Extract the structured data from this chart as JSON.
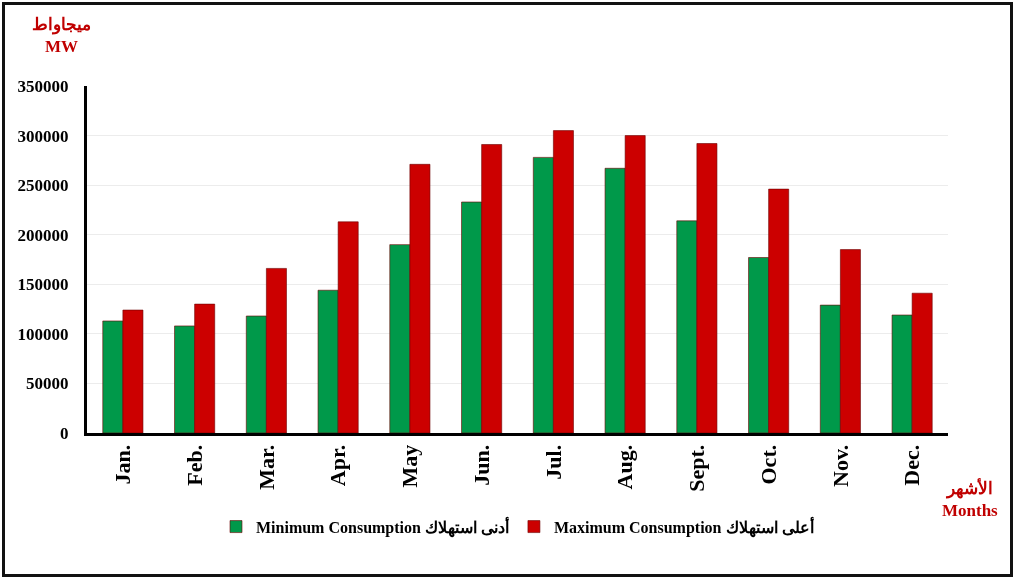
{
  "chart_data": {
    "type": "bar",
    "ylabel": "ميجاواط\nMW",
    "xlabel": "الأشهر\nMonths",
    "categories": [
      "Jan.",
      "Feb.",
      "Mar.",
      "Apr.",
      "May",
      "Jun.",
      "Jul.",
      "Aug.",
      "Sept.",
      "Oct.",
      "Nov.",
      "Dec."
    ],
    "series": [
      {
        "name": "Minimum Consumption أدنى استهلاك",
        "color": "#00994a",
        "values": [
          113000,
          108000,
          118000,
          144000,
          190000,
          233000,
          278000,
          267000,
          214000,
          177000,
          129000,
          119000
        ]
      },
      {
        "name": "Maximum Consumption أعلى استهلاك",
        "color": "#cc0000",
        "values": [
          124000,
          130000,
          166000,
          213000,
          271000,
          291000,
          305000,
          300000,
          292000,
          246000,
          185000,
          141000
        ]
      }
    ],
    "ylim": [
      0,
      350000
    ],
    "yticks": [
      0,
      50000,
      100000,
      150000,
      200000,
      250000,
      300000,
      350000
    ],
    "grid": "y",
    "legend": "bottom"
  }
}
